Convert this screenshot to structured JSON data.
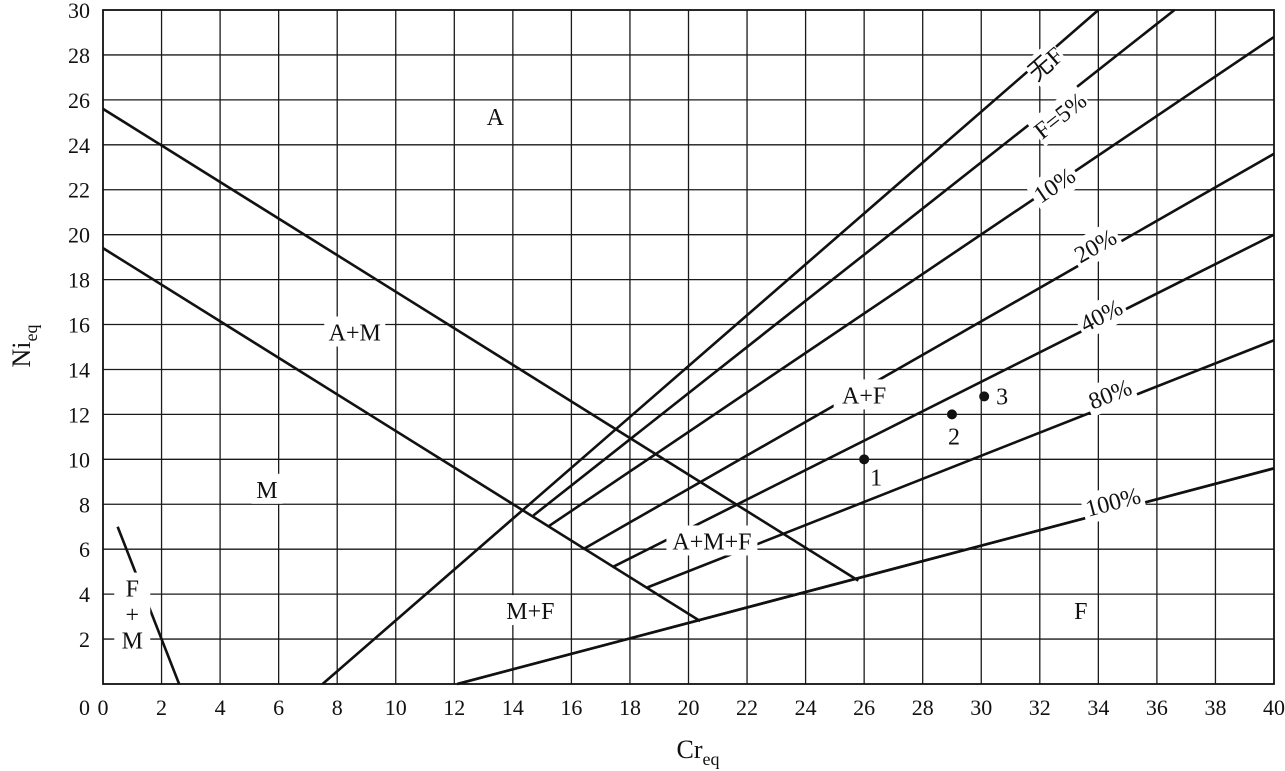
{
  "chart_data": {
    "type": "line",
    "title": "",
    "xlabel": "Cr",
    "xlabel_sub": "eq",
    "ylabel": "Ni",
    "ylabel_sub": "eq",
    "xlim": [
      0,
      40
    ],
    "ylim": [
      0,
      30
    ],
    "x_ticks": [
      0,
      2,
      4,
      6,
      8,
      10,
      12,
      14,
      16,
      18,
      20,
      22,
      24,
      26,
      28,
      30,
      32,
      34,
      36,
      38,
      40
    ],
    "y_ticks": [
      2,
      4,
      6,
      8,
      10,
      12,
      14,
      16,
      18,
      20,
      22,
      24,
      26,
      28,
      30
    ],
    "y_tick_zero_label": "0",
    "grid": true,
    "lines": [
      {
        "id": "a-am-boundary",
        "points": [
          [
            0,
            25.6
          ],
          [
            25.8,
            4.6
          ]
        ]
      },
      {
        "id": "am-m-boundary",
        "points": [
          [
            0,
            19.4
          ],
          [
            20.4,
            2.8
          ]
        ]
      },
      {
        "id": "fm-boundary",
        "points": [
          [
            0.5,
            7.0
          ],
          [
            2.6,
            0
          ]
        ]
      },
      {
        "id": "mf-f-boundary",
        "points": [
          [
            12.1,
            0
          ],
          [
            40,
            9.6
          ]
        ]
      },
      {
        "id": "no-ferrite",
        "label": "无F",
        "points": [
          [
            7.5,
            0
          ],
          [
            34.0,
            30
          ]
        ]
      },
      {
        "id": "ferrite-5",
        "label": "F=5%",
        "points": [
          [
            14.7,
            7.5
          ],
          [
            36.6,
            30
          ]
        ]
      },
      {
        "id": "ferrite-10",
        "label": "10%",
        "points": [
          [
            15.2,
            7.0
          ],
          [
            40,
            28.8
          ]
        ]
      },
      {
        "id": "ferrite-20",
        "label": "20%",
        "points": [
          [
            16.4,
            6.0
          ],
          [
            40,
            23.6
          ]
        ]
      },
      {
        "id": "ferrite-40",
        "label": "40%",
        "points": [
          [
            17.4,
            5.2
          ],
          [
            40,
            20.0
          ]
        ]
      },
      {
        "id": "ferrite-80",
        "label": "80%",
        "points": [
          [
            18.6,
            4.3
          ],
          [
            40,
            15.3
          ]
        ]
      },
      {
        "id": "ferrite-100",
        "label": "100%",
        "points": [
          [
            12.1,
            0
          ],
          [
            40,
            9.6
          ]
        ]
      }
    ],
    "regions": [
      {
        "label": "A",
        "at": [
          13.4,
          25.2
        ]
      },
      {
        "label": "A+M",
        "at": [
          8.6,
          15.6
        ]
      },
      {
        "label": "M",
        "at": [
          5.6,
          8.6
        ]
      },
      {
        "label": "A+F",
        "at": [
          26.0,
          12.8
        ]
      },
      {
        "label": "A+M+F",
        "at": [
          20.8,
          6.3
        ]
      },
      {
        "label": "M+F",
        "at": [
          14.6,
          3.2
        ]
      },
      {
        "label": "F",
        "at": [
          33.4,
          3.2
        ]
      },
      {
        "label": "F\n+\nM",
        "at": [
          1.0,
          3.0
        ]
      }
    ],
    "points": [
      {
        "label": "1",
        "x": 26.0,
        "y": 10.0
      },
      {
        "label": "2",
        "x": 29.0,
        "y": 12.0
      },
      {
        "label": "3",
        "x": 30.1,
        "y": 12.8
      }
    ]
  }
}
